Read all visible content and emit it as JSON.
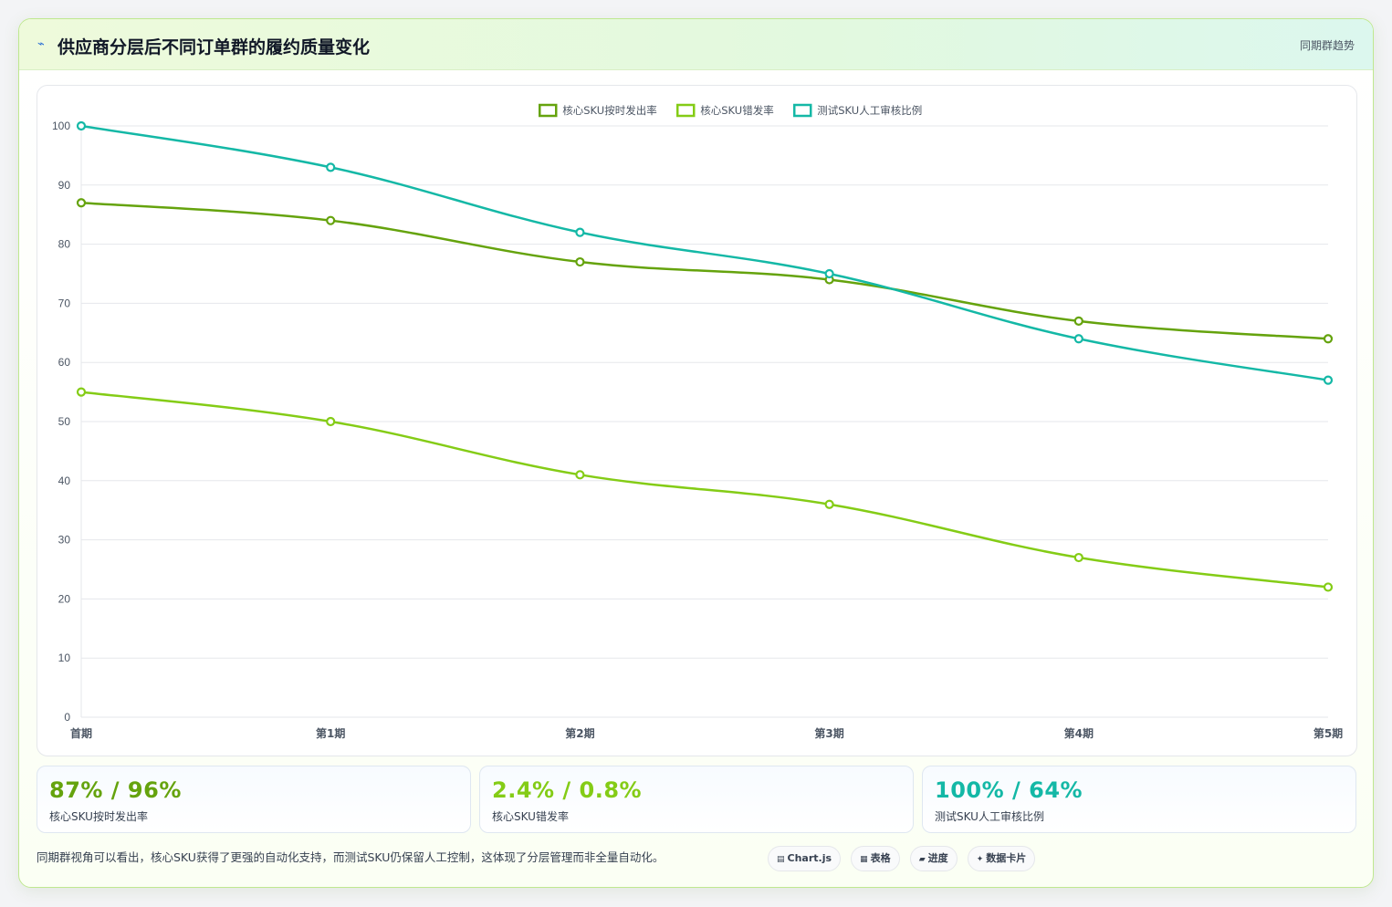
{
  "header": {
    "icon": "chart-line-icon",
    "title": "供应商分层后不同订单群的履约质量变化",
    "tag": "同期群趋势"
  },
  "colors": {
    "series1": "#65a30d",
    "series2": "#84cc16",
    "series3": "#14b8a6",
    "grid": "#e5e7eb",
    "axis_text": "#4b5563"
  },
  "chart_data": {
    "type": "line",
    "title": "",
    "xlabel": "",
    "ylabel": "",
    "categories": [
      "首期",
      "第1期",
      "第2期",
      "第3期",
      "第4期",
      "第5期"
    ],
    "ylim": [
      0,
      100
    ],
    "yticks": [
      0,
      10,
      20,
      30,
      40,
      50,
      60,
      70,
      80,
      90,
      100
    ],
    "grid": true,
    "legend_position": "top-center",
    "series": [
      {
        "name": "核心SKU按时发出率",
        "values": [
          87,
          84,
          77,
          74,
          67,
          64
        ],
        "color": "#65a30d"
      },
      {
        "name": "核心SKU错发率",
        "values": [
          55,
          50,
          41,
          36,
          27,
          22
        ],
        "color": "#84cc16"
      },
      {
        "name": "测试SKU人工审核比例",
        "values": [
          100,
          93,
          82,
          75,
          64,
          57
        ],
        "color": "#14b8a6"
      }
    ]
  },
  "stats": [
    {
      "value": "87% / 96%",
      "label": "核心SKU按时发出率",
      "color": "#65a30d"
    },
    {
      "value": "2.4% / 0.8%",
      "label": "核心SKU错发率",
      "color": "#84cc16"
    },
    {
      "value": "100% / 64%",
      "label": "测试SKU人工审核比例",
      "color": "#14b8a6"
    }
  ],
  "footer": {
    "note": "同期群视角可以看出，核心SKU获得了更强的自动化支持，而测试SKU仍保留人工控制，这体现了分层管理而非全量自动化。",
    "chips": [
      {
        "icon": "▤",
        "label": "Chart.js"
      },
      {
        "icon": "▦",
        "label": "表格"
      },
      {
        "icon": "▰",
        "label": "进度"
      },
      {
        "icon": "✦",
        "label": "数据卡片"
      }
    ]
  }
}
